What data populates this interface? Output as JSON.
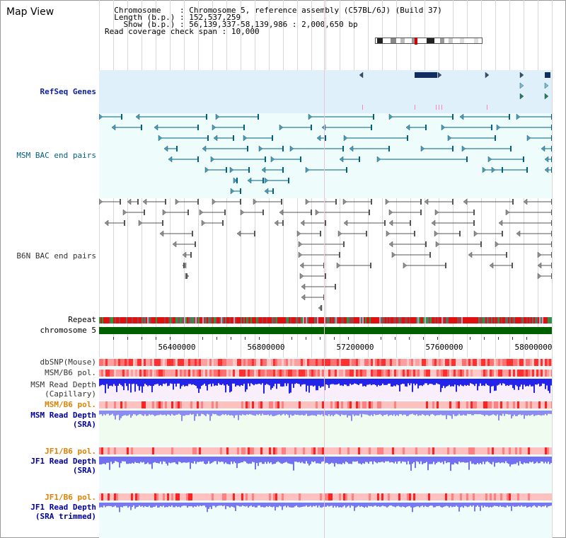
{
  "title": "Map View",
  "info": {
    "chromosome_key": "Chromosome",
    "chromosome_val": "Chromosome 5, reference assembly (C57BL/6J) (Build 37)",
    "length_key": "Length (b.p.)",
    "length_val": "152,537,259",
    "show_key": "Show (b.p.)",
    "show_val": "56,139,337-58,139,986 : 2,000,650 bp",
    "coverage_key": "Read coverage check span",
    "coverage_val": "10,000"
  },
  "tracks": {
    "refseq": "RefSeq Genes",
    "msm_bac": "MSM BAC end pairs",
    "b6n_bac": "B6N BAC end pairs",
    "repeat": "Repeat",
    "chromosome": "chromosome 5",
    "dbsnp": "dbSNP(Mouse)",
    "msm_b6_pol_1": "MSM/B6 pol.",
    "msm_depth_cap_1": "MSM Read Depth",
    "msm_depth_cap_2": "(Capillary)",
    "msm_b6_pol_2": "MSM/B6 pol.",
    "msm_depth_sra_1": "MSM Read Depth",
    "msm_depth_sra_2": "(SRA)",
    "jf1_b6_pol_1": "JF1/B6 pol.",
    "jf1_depth_sra_1": "JF1 Read Depth",
    "jf1_depth_sra_2": "(SRA)",
    "jf1_b6_pol_2": "JF1/B6 pol.",
    "jf1_depth_trim_1": "JF1 Read Depth",
    "jf1_depth_trim_2": "(SRA trimmed)"
  },
  "axis": {
    "labels": [
      "56400000",
      "56800000",
      "57200000",
      "57600000",
      "58000000"
    ]
  },
  "colors": {
    "refseq_bg": "#e0f0fa",
    "bac_bg": "#eefcfc",
    "msm_feature": "#006080",
    "b6n_feature": "#555555",
    "chromosome_bar": "#006000",
    "depth_blue": "#2020e0",
    "depth_light": "#8080f0"
  }
}
